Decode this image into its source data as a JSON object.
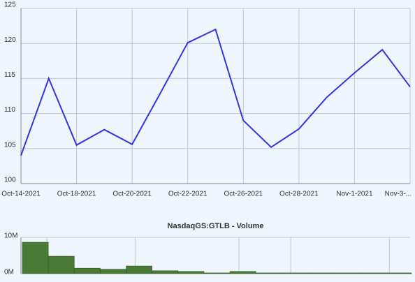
{
  "chart_data": [
    {
      "type": "line",
      "categories": [
        "Oct-14-2021",
        null,
        "Oct-18-2021",
        null,
        "Oct-20-2021",
        null,
        "Oct-22-2021",
        null,
        "Oct-26-2021",
        null,
        "Oct-28-2021",
        null,
        "Nov-1-2021",
        null,
        "Nov-3-..."
      ],
      "series": [
        {
          "color": "#3434e0",
          "values": [
            104.0,
            115.0,
            105.5,
            107.7,
            105.6,
            112.8,
            120.1,
            122.0,
            109.0,
            105.2,
            107.8,
            112.3,
            115.8,
            119.1,
            113.8
          ]
        }
      ],
      "ylim": [
        100,
        125
      ],
      "yticks": [
        100,
        105,
        110,
        115,
        120,
        125
      ],
      "grid": true
    },
    {
      "type": "bar",
      "title": "NasdaqGS:GTLB - Volume",
      "color": "#4a7a36",
      "values": [
        8650000,
        4800000,
        1500000,
        1200000,
        2100000,
        800000,
        600000,
        200000,
        600000,
        200000,
        200000,
        200000,
        200000,
        200000,
        200000
      ],
      "ylim": [
        0,
        10000000
      ],
      "yticks": [
        {
          "value": 0,
          "label": "0M"
        },
        {
          "value": 10000000,
          "label": "10M"
        }
      ],
      "grid": true
    }
  ]
}
